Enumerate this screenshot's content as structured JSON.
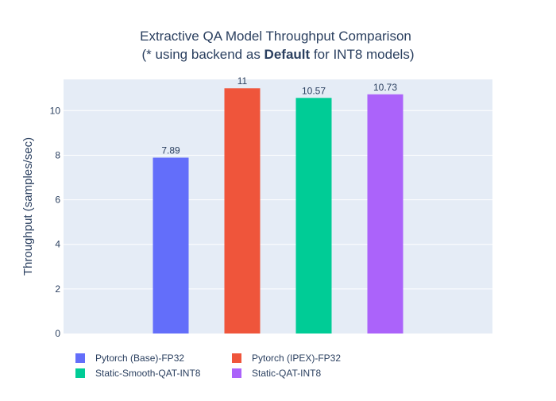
{
  "chart_data": {
    "type": "bar",
    "title_line1": "Extractive QA Model Throughput Comparison",
    "title_line2_prefix": "(* using backend as ",
    "title_line2_bold": "Default",
    "title_line2_suffix": " for INT8 models)",
    "ylabel": "Throughput (samples/sec)",
    "ylim": [
      0,
      11.4
    ],
    "yticks": [
      0,
      2,
      4,
      6,
      8,
      10
    ],
    "grid": true,
    "legend_position": "bottom",
    "series": [
      {
        "name": "Pytorch (Base)-FP32",
        "value": 7.89,
        "label": "7.89",
        "color": "#636efa"
      },
      {
        "name": "Pytorch (IPEX)-FP32",
        "value": 11,
        "label": "11",
        "color": "#ef553b"
      },
      {
        "name": "Static-Smooth-QAT-INT8",
        "value": 10.57,
        "label": "10.57",
        "color": "#00cc96"
      },
      {
        "name": "Static-QAT-INT8",
        "value": 10.73,
        "label": "10.73",
        "color": "#ab63fa"
      }
    ],
    "colors": {
      "plot_bg": "#e5ecf6",
      "grid": "#ffffff",
      "text": "#2a3f5f"
    }
  }
}
